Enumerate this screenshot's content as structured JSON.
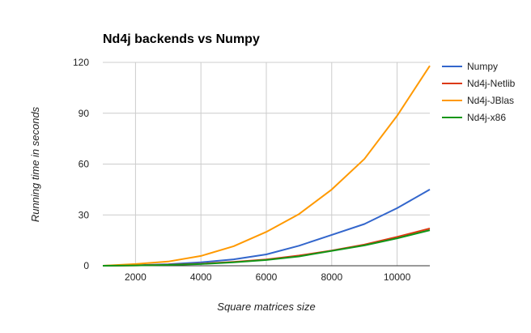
{
  "chart_data": {
    "type": "line",
    "title": "Nd4j backends vs Numpy",
    "xlabel": "Square matrices size",
    "ylabel": "Running time in seconds",
    "xlim": [
      1000,
      11000
    ],
    "ylim": [
      0,
      120
    ],
    "xticks": [
      2000,
      4000,
      6000,
      8000,
      10000
    ],
    "yticks": [
      0,
      30,
      60,
      90,
      120
    ],
    "x": [
      1000,
      2000,
      3000,
      4000,
      5000,
      6000,
      7000,
      8000,
      9000,
      10000,
      11000
    ],
    "grid": true,
    "legend_position": "right",
    "series": [
      {
        "name": "Numpy",
        "color": "#3366cc",
        "values": [
          0,
          0.3,
          0.9,
          2.0,
          3.8,
          6.7,
          11.8,
          18.2,
          24.6,
          34.0,
          45.0
        ]
      },
      {
        "name": "Nd4j-Netlib",
        "color": "#dc3912",
        "values": [
          0,
          0.2,
          0.6,
          1.2,
          2.3,
          3.7,
          6.0,
          9.0,
          12.5,
          17.0,
          22.0
        ]
      },
      {
        "name": "Nd4j-JBlas",
        "color": "#ff9900",
        "values": [
          0,
          1.0,
          2.5,
          5.8,
          11.5,
          20.0,
          30.5,
          45.0,
          63.0,
          88.5,
          118.0
        ]
      },
      {
        "name": "Nd4j-x86",
        "color": "#109618",
        "values": [
          0,
          0.2,
          0.5,
          1.0,
          2.0,
          3.4,
          5.5,
          8.8,
          12.0,
          16.2,
          21.0
        ]
      }
    ]
  }
}
